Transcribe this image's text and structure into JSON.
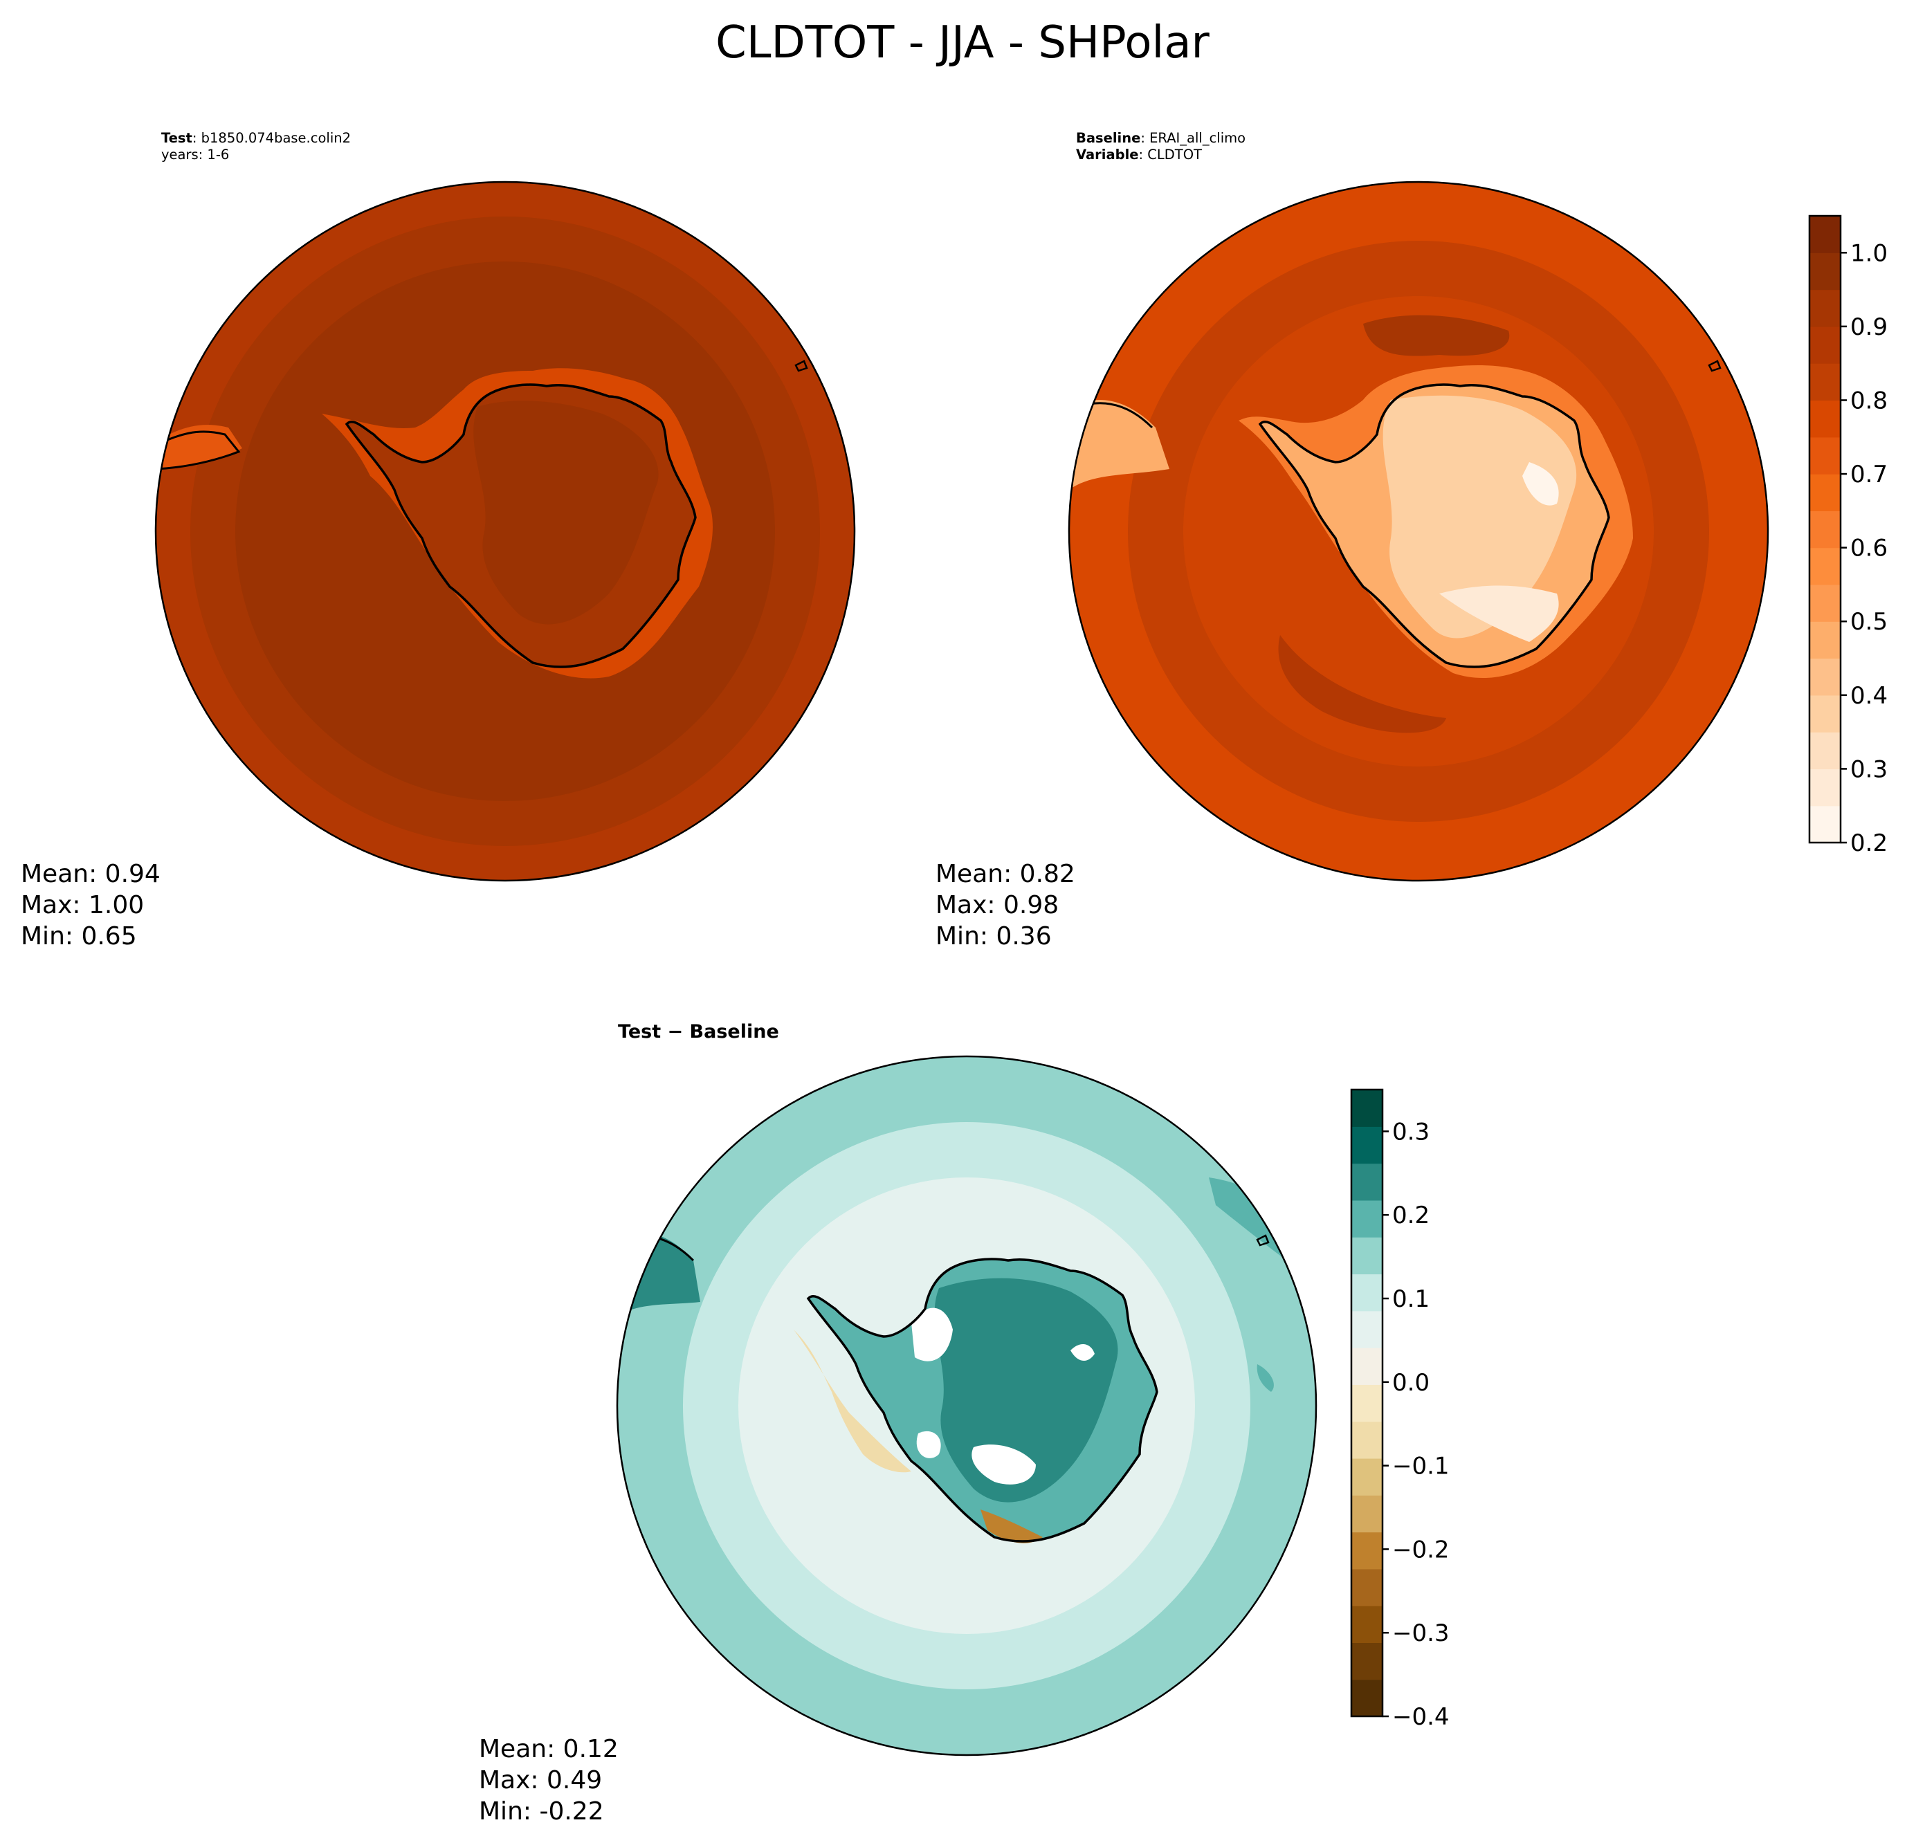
{
  "figure": {
    "title": "CLDTOT - JJA - SHPolar",
    "colors": {
      "coast": "#000000",
      "ocean_low": "#ffffff",
      "difference_land_hole": "#ffffff"
    }
  },
  "panels": [
    {
      "id": "test",
      "header": [
        {
          "bold": "Test",
          "rest": ": b1850.074base.colin2"
        },
        {
          "bold": "",
          "rest": "years: 1-6"
        }
      ],
      "stats": {
        "mean": "Mean:  0.94",
        "max": "Max:  1.00",
        "min": "Min:  0.65"
      },
      "scheme": "test"
    },
    {
      "id": "baseline",
      "header": [
        {
          "bold": "Baseline",
          "rest": ": ERAI_all_climo"
        },
        {
          "bold": "Variable",
          "rest": ": CLDTOT"
        }
      ],
      "stats": {
        "mean": "Mean:  0.82",
        "max": "Max:  0.98",
        "min": "Min:  0.36"
      },
      "scheme": "baseline"
    },
    {
      "id": "difference",
      "header": [
        {
          "bold": "Test − Baseline",
          "rest": ""
        }
      ],
      "stats": {
        "mean": "Mean:  0.12",
        "max": "Max:  0.49",
        "min": "Min: -0.22"
      },
      "scheme": "difference"
    }
  ],
  "chart_data": [
    {
      "type": "heatmap",
      "title": "CLDTOT - JJA - SHPolar",
      "panel": "Test: b1850.074base.colin2 years: 1-6",
      "projection": "south-polar-stereographic",
      "field_estimate": {
        "open_ocean": 0.97,
        "outer_ring": 0.92,
        "coast_band": 0.78,
        "interior": 0.96
      },
      "stats": {
        "mean": 0.94,
        "max": 1.0,
        "min": 0.65
      }
    },
    {
      "type": "heatmap",
      "title": "CLDTOT - JJA - SHPolar",
      "panel": "Baseline: ERAI_all_climo Variable: CLDTOT",
      "projection": "south-polar-stereographic",
      "field_estimate": {
        "open_ocean": 0.88,
        "outer_ring": 0.84,
        "coast_band": 0.55,
        "interior": 0.45
      },
      "stats": {
        "mean": 0.82,
        "max": 0.98,
        "min": 0.36
      },
      "colorbar": {
        "ticks": [
          "0.2",
          "0.3",
          "0.4",
          "0.5",
          "0.6",
          "0.7",
          "0.8",
          "0.9",
          "1.0"
        ],
        "range": [
          0.2,
          1.05
        ],
        "step": 0.05,
        "colors": [
          "#fff5eb",
          "#feead6",
          "#fddfc1",
          "#fdd0a2",
          "#fdc08a",
          "#fdae6b",
          "#fd9a51",
          "#fd8d3c",
          "#f87c2d",
          "#f16913",
          "#e6570d",
          "#d94801",
          "#c04004",
          "#b33803",
          "#a63603",
          "#8f3004",
          "#7f2704"
        ]
      },
      "legend_placement": "right"
    },
    {
      "type": "heatmap",
      "title": "Test − Baseline",
      "projection": "south-polar-stereographic",
      "field_estimate": {
        "open_ocean": 0.08,
        "outer_ring": 0.04,
        "coast_band": 0.22,
        "interior": 0.3
      },
      "stats": {
        "mean": 0.12,
        "max": 0.49,
        "min": -0.22
      },
      "colorbar": {
        "ticks": [
          "0.3",
          "0.2",
          "0.1",
          "0.0",
          "−0.1",
          "−0.2",
          "−0.3",
          "−0.4"
        ],
        "range": [
          -0.4,
          0.35
        ],
        "step": 0.05,
        "colors": [
          "#543005",
          "#6e3e07",
          "#8c510a",
          "#a6661c",
          "#bf812d",
          "#d4aa5f",
          "#dfc27d",
          "#f0dcaa",
          "#f6e8c3",
          "#f4f0e6",
          "#e5f2ef",
          "#c7eae5",
          "#93d4cb",
          "#5ab4ac",
          "#2a8a82",
          "#01665e",
          "#004c40"
        ]
      },
      "legend_placement": "right"
    }
  ]
}
